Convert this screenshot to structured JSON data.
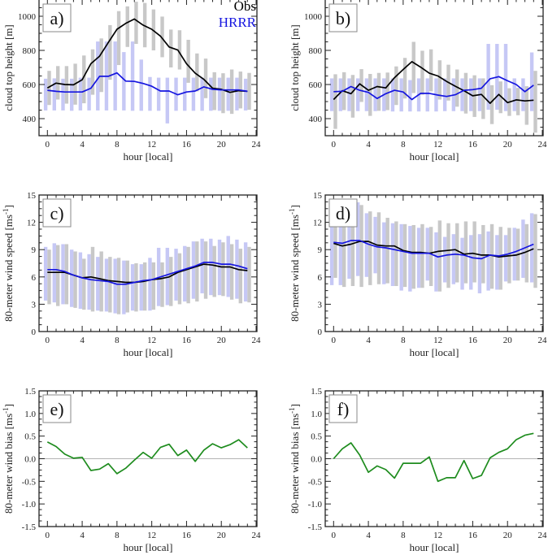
{
  "colors": {
    "obs": "#000000",
    "hrrr": "#1515e0",
    "obs_range": "#c8c8c8",
    "hrrr_range": "#c6c8f5",
    "bias": "#1e8c1e",
    "zero_line": "#b4b4b4"
  },
  "legend": {
    "obs": "Obs",
    "hrrr": "HRRR"
  },
  "chart_data": [
    {
      "id": "a",
      "panel_label": "a)",
      "type": "line",
      "xlabel": "hour [local]",
      "ylabel": "cloud top height [m]",
      "xlim": [
        -1,
        24
      ],
      "ylim": [
        300,
        1100
      ],
      "xticks": [
        0,
        4,
        8,
        12,
        16,
        20,
        24
      ],
      "xtick_labels": [
        "0",
        "4",
        "8",
        "12",
        "16",
        "20",
        "24"
      ],
      "yticks": [
        400,
        600,
        800,
        1000
      ],
      "ytick_labels": [
        "400",
        "600",
        "800",
        "1000"
      ],
      "legend": "top-right",
      "x": [
        0,
        1,
        2,
        3,
        4,
        5,
        6,
        7,
        8,
        9,
        10,
        11,
        12,
        13,
        14,
        15,
        16,
        17,
        18,
        19,
        20,
        21,
        22,
        23
      ],
      "series": [
        {
          "name": "Obs",
          "values": [
            580,
            608,
            600,
            598,
            628,
            722,
            766,
            846,
            924,
            958,
            984,
            948,
            924,
            884,
            820,
            802,
            722,
            666,
            630,
            578,
            572,
            554,
            564,
            560
          ]
        },
        {
          "name": "HRRR",
          "values": [
            566,
            560,
            556,
            556,
            556,
            578,
            648,
            648,
            668,
            620,
            618,
            606,
            590,
            562,
            562,
            540,
            556,
            562,
            586,
            572,
            568,
            568,
            568,
            560
          ]
        }
      ],
      "ranges": [
        {
          "name": "Obs range",
          "low": [
            480,
            512,
            488,
            482,
            490,
            540,
            556,
            628,
            714,
            820,
            838,
            818,
            800,
            760,
            700,
            688,
            610,
            560,
            520,
            450,
            432,
            428,
            460,
            452
          ],
          "high": [
            680,
            708,
            708,
            722,
            770,
            806,
            870,
            948,
            1030,
            1058,
            1085,
            1078,
            1040,
            998,
            922,
            918,
            862,
            782,
            752,
            672,
            666,
            688,
            676,
            668
          ]
        },
        {
          "name": "HRRR range",
          "low": [
            448,
            448,
            448,
            446,
            448,
            448,
            448,
            448,
            448,
            448,
            446,
            446,
            446,
            446,
            372,
            446,
            446,
            446,
            446,
            446,
            446,
            446,
            448,
            448
          ],
          "high": [
            634,
            636,
            634,
            634,
            640,
            640,
            852,
            852,
            852,
            790,
            852,
            746,
            644,
            640,
            640,
            640,
            640,
            640,
            640,
            640,
            640,
            640,
            640,
            634
          ]
        }
      ]
    },
    {
      "id": "b",
      "panel_label": "b)",
      "type": "line",
      "xlabel": "hour [local]",
      "ylabel": "cloud top height [m]",
      "xlim": [
        -1,
        24
      ],
      "ylim": [
        300,
        1100
      ],
      "xticks": [
        0,
        4,
        8,
        12,
        16,
        20,
        24
      ],
      "xtick_labels": [
        "0",
        "4",
        "8",
        "12",
        "16",
        "20",
        "24"
      ],
      "yticks": [
        400,
        600,
        800,
        1000
      ],
      "ytick_labels": [
        "400",
        "600",
        "800",
        "1000"
      ],
      "x": [
        0,
        1,
        2,
        3,
        4,
        5,
        6,
        7,
        8,
        9,
        10,
        11,
        12,
        13,
        14,
        15,
        16,
        17,
        18,
        19,
        20,
        21,
        22,
        23
      ],
      "series": [
        {
          "name": "Obs",
          "values": [
            512,
            564,
            546,
            604,
            566,
            588,
            580,
            640,
            688,
            734,
            702,
            666,
            650,
            618,
            590,
            564,
            534,
            542,
            490,
            542,
            494,
            510,
            504,
            508
          ]
        },
        {
          "name": "HRRR",
          "values": [
            558,
            560,
            588,
            566,
            554,
            518,
            546,
            566,
            556,
            512,
            548,
            548,
            538,
            530,
            540,
            566,
            570,
            578,
            634,
            646,
            622,
            600,
            558,
            596
          ]
        }
      ],
      "ranges": [
        {
          "name": "Obs range",
          "low": [
            340,
            450,
            406,
            498,
            416,
            446,
            450,
            480,
            518,
            550,
            540,
            560,
            512,
            506,
            470,
            430,
            410,
            398,
            368,
            432,
            416,
            420,
            364,
            318
          ],
          "high": [
            660,
            672,
            656,
            690,
            662,
            668,
            670,
            706,
            756,
            850,
            798,
            806,
            742,
            716,
            688,
            668,
            654,
            636,
            596,
            618,
            578,
            580,
            590,
            680
          ]
        },
        {
          "name": "HRRR range",
          "low": [
            444,
            444,
            444,
            444,
            444,
            444,
            444,
            442,
            442,
            442,
            442,
            442,
            442,
            444,
            444,
            444,
            444,
            444,
            452,
            452,
            444,
            444,
            444,
            444
          ],
          "high": [
            636,
            636,
            636,
            636,
            636,
            636,
            636,
            636,
            636,
            626,
            636,
            636,
            636,
            636,
            636,
            636,
            636,
            636,
            838,
            838,
            838,
            636,
            636,
            788
          ]
        }
      ]
    },
    {
      "id": "c",
      "panel_label": "c)",
      "type": "line",
      "xlabel": "hour [local]",
      "ylabel": "80-meter wind speed [ms-1]",
      "xlim": [
        -1,
        24
      ],
      "ylim": [
        0,
        15
      ],
      "xticks": [
        0,
        4,
        8,
        12,
        16,
        20,
        24
      ],
      "xtick_labels": [
        "0",
        "4",
        "8",
        "12",
        "16",
        "20",
        "24"
      ],
      "yticks": [
        0,
        3,
        6,
        9,
        12,
        15
      ],
      "ytick_labels": [
        "0",
        "3",
        "6",
        "9",
        "12",
        "15"
      ],
      "x": [
        0,
        1,
        2,
        3,
        4,
        5,
        6,
        7,
        8,
        9,
        10,
        11,
        12,
        13,
        14,
        15,
        16,
        17,
        18,
        19,
        20,
        21,
        22,
        23
      ],
      "series": [
        {
          "name": "Obs",
          "values": [
            6.5,
            6.5,
            6.5,
            6.2,
            5.9,
            6.0,
            5.8,
            5.6,
            5.5,
            5.4,
            5.4,
            5.5,
            5.7,
            5.8,
            6.0,
            6.5,
            6.8,
            7.1,
            7.4,
            7.3,
            7.1,
            7.1,
            6.8,
            6.7
          ]
        },
        {
          "name": "HRRR",
          "values": [
            6.8,
            6.8,
            6.6,
            6.2,
            5.9,
            5.7,
            5.6,
            5.5,
            5.2,
            5.2,
            5.4,
            5.6,
            5.7,
            6.0,
            6.3,
            6.6,
            6.9,
            7.2,
            7.6,
            7.6,
            7.4,
            7.4,
            7.2,
            6.9
          ]
        }
      ],
      "ranges": [
        {
          "name": "Obs range",
          "low": [
            3.0,
            2.8,
            3.0,
            2.6,
            2.4,
            2.2,
            2.2,
            2.1,
            1.9,
            2.1,
            2.2,
            2.3,
            2.4,
            2.7,
            2.8,
            3.0,
            3.1,
            3.3,
            3.6,
            3.8,
            3.9,
            3.5,
            3.1,
            3.2
          ],
          "high": [
            9.0,
            9.5,
            9.6,
            8.8,
            8.0,
            9.3,
            8.8,
            8.2,
            8.1,
            7.8,
            7.5,
            7.6,
            7.6,
            7.6,
            8.2,
            8.6,
            9.3,
            9.9,
            9.9,
            9.4,
            9.8,
            9.6,
            9.1,
            9.3
          ]
        },
        {
          "name": "HRRR range",
          "low": [
            3.4,
            3.2,
            3.0,
            2.7,
            2.5,
            2.4,
            2.3,
            2.2,
            2.0,
            1.9,
            2.3,
            2.3,
            2.3,
            2.8,
            2.9,
            3.4,
            3.3,
            3.6,
            4.2,
            4.0,
            4.0,
            3.8,
            3.6,
            3.3
          ],
          "high": [
            9.3,
            9.7,
            9.6,
            9.0,
            8.7,
            8.5,
            8.2,
            8.0,
            8.0,
            7.8,
            7.4,
            7.4,
            8.1,
            9.2,
            9.2,
            9.1,
            9.4,
            9.9,
            10.2,
            10.2,
            10.1,
            10.5,
            10.1,
            9.8
          ]
        }
      ]
    },
    {
      "id": "d",
      "panel_label": "d)",
      "type": "line",
      "xlabel": "hour [local]",
      "ylabel": "80-meter wind speed [ms-1]",
      "xlim": [
        -1,
        24
      ],
      "ylim": [
        0,
        15
      ],
      "xticks": [
        0,
        4,
        8,
        12,
        16,
        20,
        24
      ],
      "xtick_labels": [
        "0",
        "4",
        "8",
        "12",
        "16",
        "20",
        "24"
      ],
      "yticks": [
        0,
        3,
        6,
        9,
        12,
        15
      ],
      "ytick_labels": [
        "0",
        "3",
        "6",
        "9",
        "12",
        "15"
      ],
      "x": [
        0,
        1,
        2,
        3,
        4,
        5,
        6,
        7,
        8,
        9,
        10,
        11,
        12,
        13,
        14,
        15,
        16,
        17,
        18,
        19,
        20,
        21,
        22,
        23
      ],
      "series": [
        {
          "name": "Obs",
          "values": [
            9.7,
            9.4,
            9.6,
            9.9,
            9.9,
            9.5,
            9.4,
            9.4,
            8.9,
            8.7,
            8.7,
            8.6,
            8.8,
            8.9,
            9.0,
            8.5,
            8.6,
            8.4,
            8.4,
            8.2,
            8.3,
            8.4,
            8.7,
            9.1
          ]
        },
        {
          "name": "HRRR",
          "values": [
            9.8,
            9.7,
            10.0,
            10.0,
            9.6,
            9.3,
            9.2,
            9.0,
            8.8,
            8.6,
            8.6,
            8.6,
            8.2,
            8.4,
            8.5,
            8.4,
            8.1,
            8.0,
            8.4,
            8.3,
            8.5,
            8.8,
            9.2,
            9.6
          ]
        }
      ],
      "ranges": [
        {
          "name": "Obs range",
          "low": [
            5.9,
            4.9,
            5.0,
            4.9,
            5.1,
            5.2,
            5.3,
            5.0,
            4.9,
            4.7,
            4.8,
            5.0,
            4.4,
            4.8,
            5.4,
            5.3,
            5.4,
            5.3,
            4.7,
            4.6,
            5.3,
            5.6,
            5.4,
            4.8
          ],
          "high": [
            11.8,
            11.5,
            12.4,
            13.9,
            13.2,
            13.1,
            12.5,
            12.1,
            11.8,
            11.7,
            11.8,
            11.5,
            12.2,
            11.9,
            11.9,
            12.1,
            12.1,
            11.7,
            11.8,
            11.5,
            11.4,
            11.3,
            11.8,
            12.9
          ]
        },
        {
          "name": "HRRR range",
          "low": [
            5.1,
            5.1,
            5.8,
            6.1,
            6.0,
            6.4,
            5.2,
            5.0,
            4.5,
            4.4,
            4.8,
            5.6,
            4.4,
            5.4,
            5.2,
            4.6,
            4.6,
            4.2,
            4.5,
            4.6,
            5.5,
            5.6,
            5.9,
            5.4
          ],
          "high": [
            11.8,
            12.5,
            13.5,
            14.2,
            13.0,
            12.6,
            12.0,
            11.9,
            11.8,
            11.6,
            11.4,
            11.4,
            10.9,
            10.4,
            10.7,
            10.3,
            10.6,
            10.7,
            11.0,
            10.6,
            10.6,
            11.4,
            12.3,
            13.0
          ]
        }
      ]
    },
    {
      "id": "e",
      "panel_label": "e)",
      "type": "line",
      "xlabel": "hour [local]",
      "ylabel": "80-meter wind bias [ms-1]",
      "xlim": [
        -1,
        24
      ],
      "ylim": [
        -1.5,
        1.5
      ],
      "xticks": [
        0,
        4,
        8,
        12,
        16,
        20,
        24
      ],
      "xtick_labels": [
        "0",
        "4",
        "8",
        "12",
        "16",
        "20",
        "24"
      ],
      "yticks": [
        -1.5,
        -1.0,
        -0.5,
        0.0,
        0.5,
        1.0,
        1.5
      ],
      "ytick_labels": [
        "-1.5",
        "-1.0",
        "-0.5",
        "0.0",
        "0.5",
        "1.0",
        "1.5"
      ],
      "x": [
        0,
        1,
        2,
        3,
        4,
        5,
        6,
        7,
        8,
        9,
        10,
        11,
        12,
        13,
        14,
        15,
        16,
        17,
        18,
        19,
        20,
        21,
        22,
        23
      ],
      "series": [
        {
          "name": "bias",
          "values": [
            0.37,
            0.27,
            0.1,
            0.01,
            0.03,
            -0.26,
            -0.23,
            -0.11,
            -0.33,
            -0.21,
            -0.03,
            0.14,
            0.01,
            0.25,
            0.32,
            0.07,
            0.19,
            -0.06,
            0.19,
            0.33,
            0.24,
            0.31,
            0.42,
            0.24
          ]
        }
      ]
    },
    {
      "id": "f",
      "panel_label": "f)",
      "type": "line",
      "xlabel": "hour [local]",
      "ylabel": "80-meter wind bias [ms-1]",
      "xlim": [
        -1,
        24
      ],
      "ylim": [
        -1.5,
        1.5
      ],
      "xticks": [
        0,
        4,
        8,
        12,
        16,
        20,
        24
      ],
      "xtick_labels": [
        "0",
        "4",
        "8",
        "12",
        "16",
        "20",
        "24"
      ],
      "yticks": [
        -1.5,
        -1.0,
        -0.5,
        0.0,
        0.5,
        1.0,
        1.5
      ],
      "ytick_labels": [
        "-1.5",
        "-1.0",
        "-0.5",
        "0.0",
        "0.5",
        "1.0",
        "1.5"
      ],
      "x": [
        0,
        1,
        2,
        3,
        4,
        5,
        6,
        7,
        8,
        9,
        10,
        11,
        12,
        13,
        14,
        15,
        16,
        17,
        18,
        19,
        20,
        21,
        22,
        23
      ],
      "series": [
        {
          "name": "bias",
          "values": [
            0.0,
            0.22,
            0.35,
            0.08,
            -0.3,
            -0.16,
            -0.24,
            -0.43,
            -0.1,
            -0.1,
            -0.1,
            0.04,
            -0.5,
            -0.42,
            -0.42,
            -0.04,
            -0.44,
            -0.37,
            0.02,
            0.14,
            0.22,
            0.42,
            0.52,
            0.56
          ]
        }
      ]
    }
  ]
}
